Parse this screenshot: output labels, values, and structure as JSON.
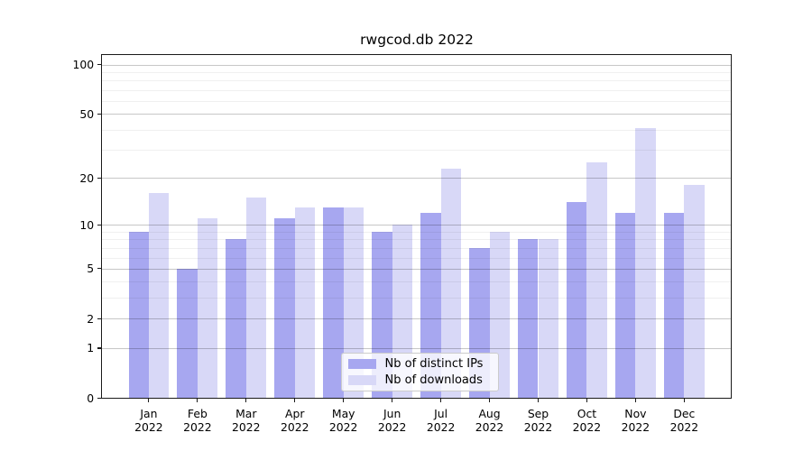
{
  "chart_data": {
    "type": "bar",
    "title": "rwgcod.db 2022",
    "categories": [
      "Jan",
      "Feb",
      "Mar",
      "Apr",
      "May",
      "Jun",
      "Jul",
      "Aug",
      "Sep",
      "Oct",
      "Nov",
      "Dec"
    ],
    "category_sublabel": "2022",
    "series": [
      {
        "name": "Nb of distinct IPs",
        "color": "#a7a7f0",
        "values": [
          9,
          5,
          8,
          11,
          13,
          9,
          12,
          7,
          8,
          14,
          12,
          12
        ]
      },
      {
        "name": "Nb of downloads",
        "color": "#d8d8f7",
        "values": [
          16,
          11,
          15,
          13,
          13,
          10,
          23,
          9,
          8,
          25,
          41,
          18
        ]
      }
    ],
    "xlabel": "",
    "ylabel": "",
    "yscale": "log1p-symlog",
    "ylim": [
      0,
      116
    ],
    "yticks": [
      0,
      1,
      2,
      5,
      10,
      20,
      50,
      100
    ],
    "yticks_minor": [
      3,
      4,
      6,
      7,
      8,
      9,
      30,
      40,
      60,
      70,
      80,
      90
    ],
    "grid": true,
    "grid_on_top_of_bars": true,
    "legend_position": "lower center-left inside plot",
    "colors": {
      "background": "#ffffff",
      "grid_major": "rgba(0,0,0,0.22)",
      "grid_minor": "rgba(0,0,0,0.06)",
      "axis": "#1a1a1a",
      "text": "#000000"
    }
  }
}
